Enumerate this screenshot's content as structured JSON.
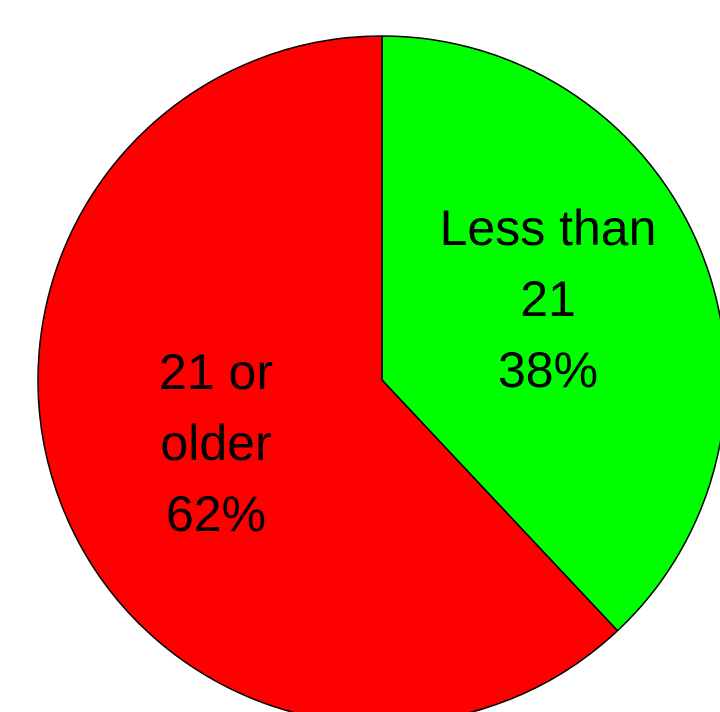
{
  "chart_data": {
    "type": "pie",
    "slices": [
      {
        "label_lines": [
          "Less than",
          "21"
        ],
        "value": 38,
        "value_label": "38%",
        "color": "#00ff00"
      },
      {
        "label_lines": [
          "21 or",
          "older"
        ],
        "value": 62,
        "value_label": "62%",
        "color": "#ff0000"
      }
    ],
    "start": "12 o'clock",
    "direction": "clockwise",
    "legend": "none"
  }
}
